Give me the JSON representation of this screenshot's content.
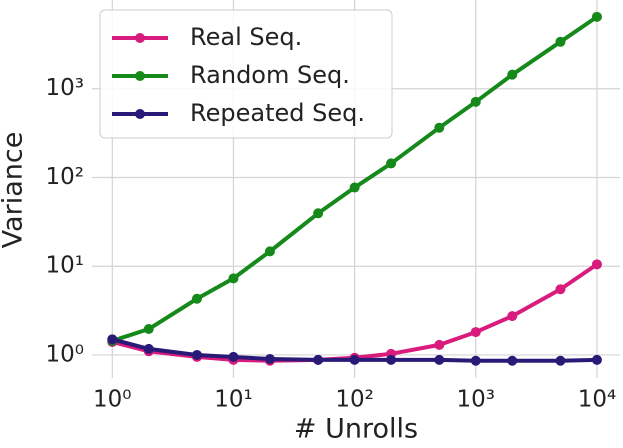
{
  "chart_data": {
    "type": "line",
    "x_label": "# Unrolls",
    "y_label": "Variance",
    "x": [
      1,
      2,
      5,
      10,
      20,
      50,
      100,
      200,
      500,
      1000,
      2000,
      5000,
      10000
    ],
    "series": [
      {
        "name": "Real Seq.",
        "color": "#d81b7c",
        "values": [
          1.4,
          1.1,
          0.95,
          0.88,
          0.86,
          0.88,
          0.93,
          1.03,
          1.3,
          1.81,
          2.74,
          5.5,
          10.5
        ]
      },
      {
        "name": "Random Seq.",
        "color": "#15891a",
        "values": [
          1.44,
          1.96,
          4.3,
          7.3,
          14.7,
          39.5,
          77,
          144,
          364,
          712,
          1440,
          3380,
          6460
        ]
      },
      {
        "name": "Repeated Seq.",
        "color": "#2a1a78",
        "values": [
          1.5,
          1.17,
          1.0,
          0.95,
          0.9,
          0.88,
          0.88,
          0.88,
          0.88,
          0.86,
          0.86,
          0.86,
          0.88
        ]
      }
    ],
    "log_x": true,
    "log_y": true,
    "xlim": [
      0.68,
      15500
    ],
    "ylim": [
      0.55,
      10000
    ],
    "xticks": [
      {
        "value": 1,
        "label": "10⁰"
      },
      {
        "value": 10,
        "label": "10¹"
      },
      {
        "value": 100,
        "label": "10²"
      },
      {
        "value": 1000,
        "label": "10³"
      },
      {
        "value": 10000,
        "label": "10⁴"
      }
    ],
    "yticks": [
      {
        "value": 1,
        "label": "10⁰"
      },
      {
        "value": 10,
        "label": "10¹"
      },
      {
        "value": 100,
        "label": "10²"
      },
      {
        "value": 1000,
        "label": "10³"
      }
    ],
    "grid": true,
    "legend": "upper left"
  }
}
